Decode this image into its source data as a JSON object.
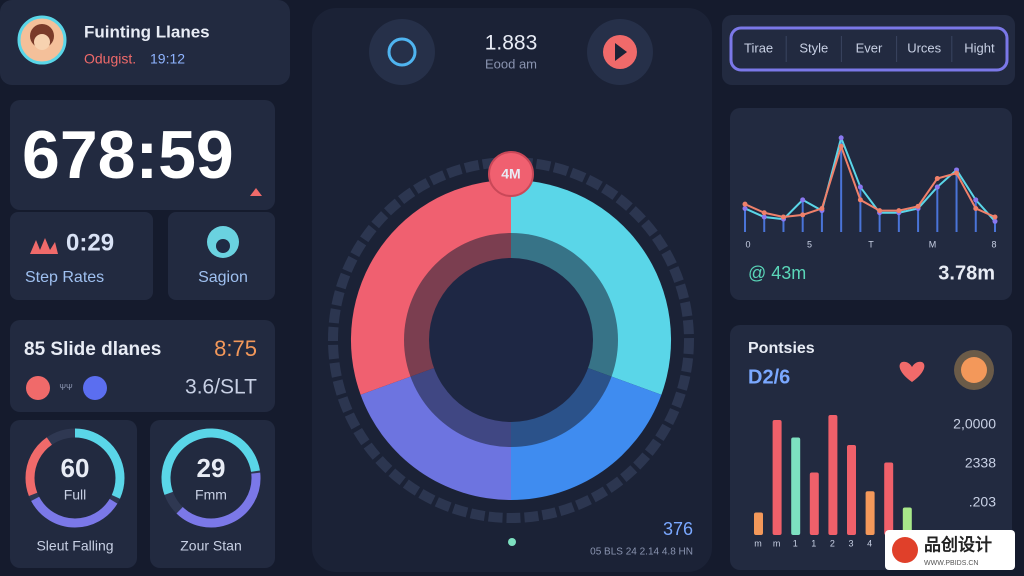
{
  "profile": {
    "name": "Fuinting Llanes",
    "status": "Odugist.",
    "time": "19:12"
  },
  "timer": {
    "value": "678:59"
  },
  "step": {
    "value": "0:29",
    "label": "Step Rates"
  },
  "region": {
    "label": "Sagion"
  },
  "slide": {
    "title": "85 Slide dlanes",
    "value": "8:75",
    "icon_text": "ΨΨ",
    "rate": "3.6/SLT"
  },
  "gauges": [
    {
      "value": "60",
      "unit": "Full",
      "label": "Sleut Falling"
    },
    {
      "value": "29",
      "unit": "Fmm",
      "label": "Zour Stan"
    }
  ],
  "player": {
    "value": "1.883",
    "label": "Eood am",
    "donut_label": "4M",
    "bottom_value": "376",
    "bottom_text": "05 BLS 24 2.14 4.8 HN"
  },
  "tabs": [
    "Tirae",
    "Style",
    "Ever",
    "Urces",
    "Hight"
  ],
  "line_chart": {
    "x_labels": [
      "0",
      "5",
      "T",
      "M",
      "8"
    ],
    "series": [
      {
        "color": "#5ad6e8",
        "values": [
          22,
          14,
          12,
          30,
          20,
          88,
          42,
          18,
          18,
          22,
          42,
          58,
          30,
          10
        ]
      },
      {
        "color": "#f0806a",
        "values": [
          26,
          18,
          14,
          16,
          22,
          80,
          30,
          20,
          20,
          24,
          50,
          55,
          22,
          14
        ]
      }
    ],
    "stat_left": "@ 43m",
    "stat_right": "3.78m"
  },
  "bar_chart": {
    "title": "Pontsies",
    "subtitle": "D2/6",
    "y_labels": [
      "2,0000",
      "2338",
      ".203"
    ],
    "x_labels": [
      "m",
      "m",
      "1",
      "1",
      "2",
      "3",
      "4"
    ],
    "values": [
      18,
      92,
      78,
      50,
      96,
      72,
      35,
      58,
      22
    ],
    "colors": [
      "#f3985a",
      "#f0606a",
      "#7de0c0",
      "#f0606a",
      "#f0606a",
      "#f0606a",
      "#f3985a",
      "#f0606a",
      "#a8e88a"
    ]
  },
  "watermark": {
    "brand": "品创设计",
    "url": "WWW.PBIDS.CN"
  }
}
